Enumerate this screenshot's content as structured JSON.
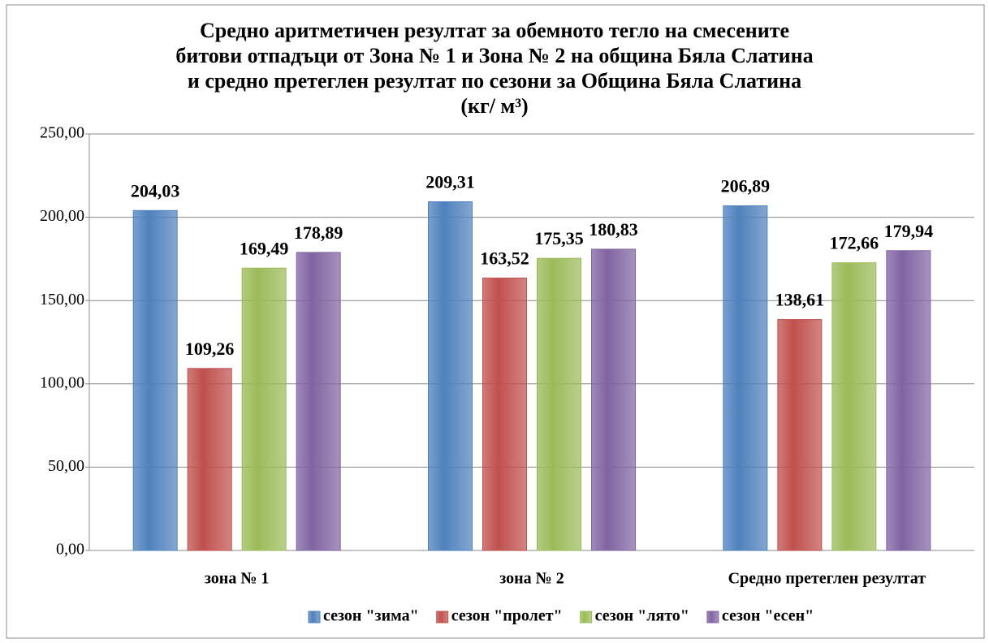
{
  "chart_data": {
    "type": "bar",
    "title": "Средно аритметичен резултат за обемното тегло на смесените битови отпадъци от Зона № 1 и Зона № 2 на община Бяла Слатина  и средно претеглен  резултат по сезони за Община Бяла Слатина (кг/ м³)",
    "categories": [
      "зона  № 1",
      "зона  № 2",
      "Средно претеглен резултат"
    ],
    "series": [
      {
        "name": "сезон \"зима\"",
        "color": "#4f81bd",
        "values": [
          204.03,
          209.31,
          206.89
        ],
        "value_labels": [
          "204,03",
          "209,31",
          "206,89"
        ]
      },
      {
        "name": "сезон \"пролет\"",
        "color": "#c0504d",
        "values": [
          109.26,
          163.52,
          138.61
        ],
        "value_labels": [
          "109,26",
          "163,52",
          "138,61"
        ]
      },
      {
        "name": "сезон \"лято\"",
        "color": "#9bbb59",
        "values": [
          169.49,
          175.35,
          172.66
        ],
        "value_labels": [
          "169,49",
          "175,35",
          "172,66"
        ]
      },
      {
        "name": "сезон \"есен\"",
        "color": "#8064a2",
        "values": [
          178.89,
          180.83,
          179.94
        ],
        "value_labels": [
          "178,89",
          "180,83",
          "179,94"
        ]
      }
    ],
    "ylim": [
      0,
      250
    ],
    "yticks": [
      {
        "value": 0,
        "label": "0,00"
      },
      {
        "value": 50,
        "label": "50,00"
      },
      {
        "value": 100,
        "label": "100,00"
      },
      {
        "value": 150,
        "label": "150,00"
      },
      {
        "value": 200,
        "label": "200,00"
      },
      {
        "value": 250,
        "label": "250,00"
      }
    ],
    "grid": true,
    "legend": "bottom"
  }
}
